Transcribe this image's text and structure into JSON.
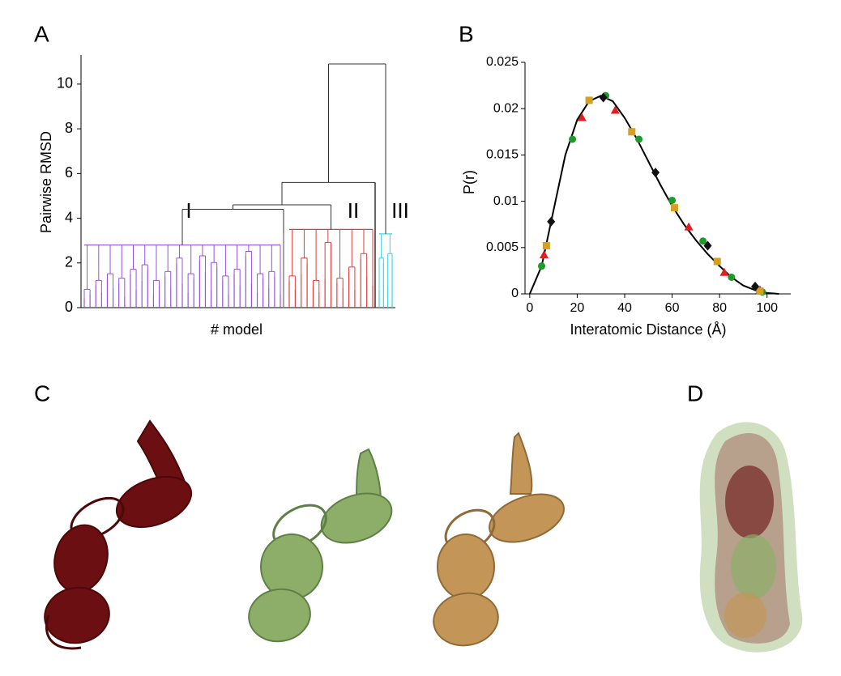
{
  "panel_labels": [
    "A",
    "B",
    "C",
    "D"
  ],
  "chart_data": [
    {
      "type": "dendrogram",
      "ylabel": "Pairwise RMSD",
      "xlabel": "# model",
      "ylim": [
        0,
        11.3
      ],
      "yticks": [
        0,
        2,
        4,
        6,
        8,
        10
      ],
      "clusters": [
        {
          "name": "I",
          "color": "#9650dc",
          "height": 2.8,
          "leaves": [
            0.4,
            0.6,
            1.0,
            0.7,
            1.3,
            0.9,
            1.1,
            0.5,
            1.5,
            0.8,
            1.2,
            1.7,
            0.6,
            1.0,
            1.4,
            0.9,
            2.0,
            1.1,
            0.7,
            1.3,
            2.1,
            1.6,
            0.8,
            1.8,
            1.2,
            0.6,
            1.5,
            1.0,
            2.3,
            1.1,
            0.7,
            1.3,
            0.9,
            1.4,
            0.6
          ]
        },
        {
          "name": "II",
          "color": "#e03c3c",
          "height": 3.5,
          "leaves": [
            1.2,
            0.8,
            1.5,
            2.0,
            1.0,
            0.7,
            1.3,
            2.7,
            1.1,
            0.9,
            1.6,
            0.8,
            2.2,
            1.4,
            1.0
          ]
        },
        {
          "name": "III",
          "color": "#38d4e0",
          "height": 3.3,
          "leaves": [
            0.8,
            2.0,
            1.0,
            2.2
          ]
        }
      ],
      "singletons": [
        {
          "color": "#888888",
          "height": 3.3
        },
        {
          "color": "#333333",
          "height": 5.6
        }
      ],
      "merges": [
        4.4,
        4.6,
        5.6,
        10.9
      ],
      "link_color": "#333333"
    },
    {
      "type": "line",
      "xlabel": "Interatomic Distance (Å)",
      "ylabel": "P(r)",
      "xlim": [
        -2,
        110
      ],
      "xticks": [
        0,
        20,
        40,
        60,
        80,
        100
      ],
      "ylim": [
        0,
        0.025
      ],
      "yticks": [
        0,
        0.005,
        0.01,
        0.015,
        0.02,
        0.025
      ],
      "color": "#000000",
      "x": [
        0,
        5,
        10,
        15,
        20,
        25,
        30,
        35,
        40,
        45,
        50,
        55,
        60,
        65,
        70,
        75,
        80,
        85,
        90,
        95,
        100,
        105
      ],
      "values": [
        0,
        0.003,
        0.009,
        0.015,
        0.0188,
        0.0208,
        0.0214,
        0.0208,
        0.019,
        0.0168,
        0.0143,
        0.0118,
        0.0095,
        0.0075,
        0.0058,
        0.0043,
        0.003,
        0.0018,
        0.0009,
        0.0004,
        0.0001,
        0
      ],
      "markers": [
        {
          "color": "#1e9a2a",
          "shape": "circle",
          "x": [
            5,
            18,
            32,
            46,
            60,
            73,
            85,
            98
          ],
          "values": [
            0.003,
            0.0167,
            0.0214,
            0.0167,
            0.0101,
            0.0057,
            0.0018,
            0.0002
          ]
        },
        {
          "color": "#e02020",
          "shape": "triangle",
          "x": [
            6,
            22,
            36,
            67,
            82,
            97
          ],
          "values": [
            0.0042,
            0.019,
            0.0198,
            0.0072,
            0.0023,
            0.0004
          ]
        },
        {
          "color": "#d4a020",
          "shape": "square",
          "x": [
            7,
            25,
            43,
            61,
            79,
            97
          ],
          "values": [
            0.0052,
            0.0209,
            0.0175,
            0.0093,
            0.0035,
            0.0003
          ]
        },
        {
          "color": "#111111",
          "shape": "diamond",
          "x": [
            9,
            31,
            53,
            75,
            95
          ],
          "values": [
            0.0078,
            0.0212,
            0.0131,
            0.0052,
            0.0008
          ]
        }
      ]
    }
  ]
}
